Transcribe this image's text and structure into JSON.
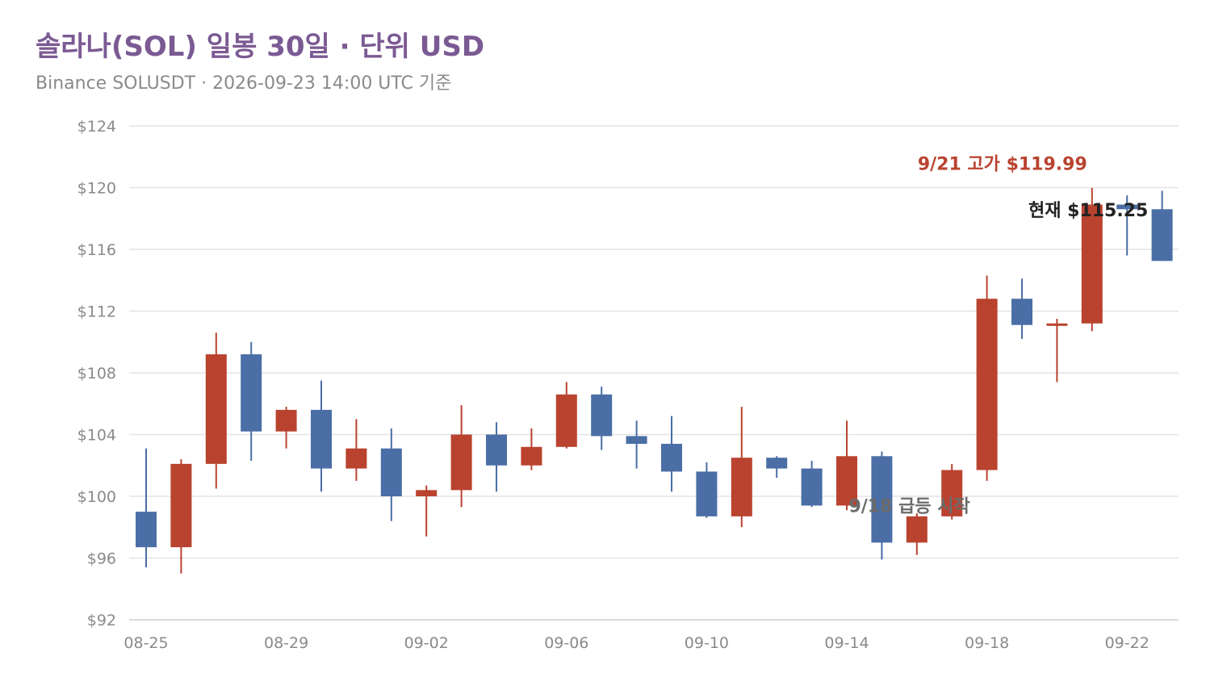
{
  "title": "솔라나(SOL) 일봉 30일 · 단위 USD",
  "subtitle": "Binance SOLUSDT · 2026-09-23 14:00 UTC 기준",
  "colors": {
    "up": "#b9432f",
    "down": "#4a6ea5",
    "title": "#7b5a93",
    "grid": "#e3e3e3",
    "axis_text": "#8a8a8a"
  },
  "chart_data": {
    "type": "candlestick",
    "ylim": [
      92,
      124
    ],
    "y_ticks": [
      "$92",
      "$96",
      "$100",
      "$104",
      "$108",
      "$112",
      "$116",
      "$120",
      "$124"
    ],
    "y_tick_values": [
      92,
      96,
      100,
      104,
      108,
      112,
      116,
      120,
      124
    ],
    "x_tick_labels": [
      "08-25",
      "08-29",
      "09-02",
      "09-06",
      "09-10",
      "09-14",
      "09-18",
      "09-22"
    ],
    "grid": true,
    "candles": [
      {
        "date": "08-25",
        "open": 99.0,
        "high": 103.1,
        "low": 95.4,
        "close": 96.7
      },
      {
        "date": "08-26",
        "open": 96.7,
        "high": 102.4,
        "low": 95.0,
        "close": 102.1
      },
      {
        "date": "08-27",
        "open": 102.1,
        "high": 110.6,
        "low": 100.5,
        "close": 109.2
      },
      {
        "date": "08-28",
        "open": 109.2,
        "high": 110.0,
        "low": 102.3,
        "close": 104.2
      },
      {
        "date": "08-29",
        "open": 104.2,
        "high": 105.8,
        "low": 103.1,
        "close": 105.6
      },
      {
        "date": "08-30",
        "open": 105.6,
        "high": 107.5,
        "low": 100.3,
        "close": 101.8
      },
      {
        "date": "08-31",
        "open": 101.8,
        "high": 105.0,
        "low": 101.0,
        "close": 103.1
      },
      {
        "date": "09-01",
        "open": 103.1,
        "high": 104.4,
        "low": 98.4,
        "close": 100.0
      },
      {
        "date": "09-02",
        "open": 100.0,
        "high": 100.7,
        "low": 97.4,
        "close": 100.4
      },
      {
        "date": "09-03",
        "open": 100.4,
        "high": 105.9,
        "low": 99.3,
        "close": 104.0
      },
      {
        "date": "09-04",
        "open": 104.0,
        "high": 104.8,
        "low": 100.3,
        "close": 102.0
      },
      {
        "date": "09-05",
        "open": 102.0,
        "high": 104.4,
        "low": 101.7,
        "close": 103.2
      },
      {
        "date": "09-06",
        "open": 103.2,
        "high": 107.4,
        "low": 103.1,
        "close": 106.6
      },
      {
        "date": "09-07",
        "open": 106.6,
        "high": 107.1,
        "low": 103.0,
        "close": 103.9
      },
      {
        "date": "09-08",
        "open": 103.9,
        "high": 104.9,
        "low": 101.8,
        "close": 103.4
      },
      {
        "date": "09-09",
        "open": 103.4,
        "high": 105.2,
        "low": 100.3,
        "close": 101.6
      },
      {
        "date": "09-10",
        "open": 101.6,
        "high": 102.2,
        "low": 98.6,
        "close": 98.7
      },
      {
        "date": "09-11",
        "open": 98.7,
        "high": 105.8,
        "low": 98.0,
        "close": 102.5
      },
      {
        "date": "09-12",
        "open": 102.5,
        "high": 102.6,
        "low": 101.2,
        "close": 101.8
      },
      {
        "date": "09-13",
        "open": 101.8,
        "high": 102.3,
        "low": 99.3,
        "close": 99.4
      },
      {
        "date": "09-14",
        "open": 99.4,
        "high": 104.9,
        "low": 99.1,
        "close": 102.6
      },
      {
        "date": "09-15",
        "open": 102.6,
        "high": 102.9,
        "low": 95.9,
        "close": 97.0
      },
      {
        "date": "09-16",
        "open": 97.0,
        "high": 98.9,
        "low": 96.2,
        "close": 98.7
      },
      {
        "date": "09-17",
        "open": 98.7,
        "high": 102.1,
        "low": 98.5,
        "close": 101.7
      },
      {
        "date": "09-18",
        "open": 101.7,
        "high": 114.3,
        "low": 101.0,
        "close": 112.8
      },
      {
        "date": "09-19",
        "open": 112.8,
        "high": 114.1,
        "low": 110.2,
        "close": 111.1
      },
      {
        "date": "09-20",
        "open": 111.1,
        "high": 111.5,
        "low": 107.4,
        "close": 111.2
      },
      {
        "date": "09-21",
        "open": 111.2,
        "high": 119.99,
        "low": 110.7,
        "close": 118.9
      },
      {
        "date": "09-22",
        "open": 118.9,
        "high": 119.5,
        "low": 115.6,
        "close": 118.6
      },
      {
        "date": "09-23",
        "open": 118.6,
        "high": 119.8,
        "low": 115.25,
        "close": 115.25
      }
    ],
    "annotations": {
      "high_label": "9/21 고가 $119.99",
      "current_label": "현재 $115.25",
      "surge_label": "9/18 급등 시작"
    }
  }
}
